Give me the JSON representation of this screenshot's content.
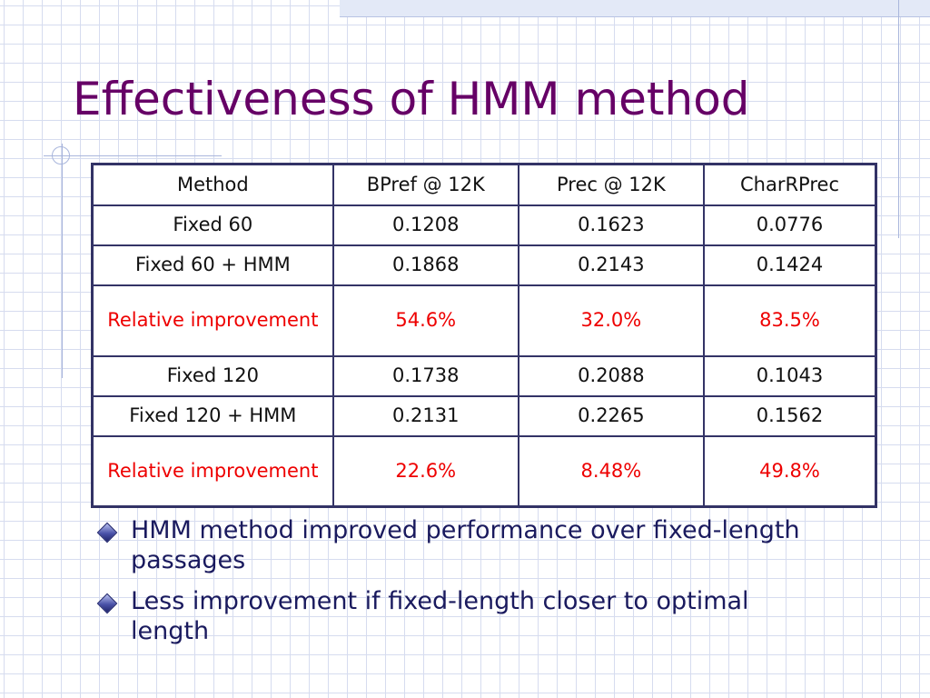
{
  "slide": {
    "title": "Effectiveness of HMM method"
  },
  "table": {
    "headers": [
      "Method",
      "BPref @ 12K",
      "Prec @ 12K",
      "CharRPrec"
    ],
    "rows": [
      [
        "Fixed 60",
        "0.1208",
        "0.1623",
        "0.0776"
      ],
      [
        "Fixed 60 + HMM",
        "0.1868",
        "0.2143",
        "0.1424"
      ],
      [
        "Relative improvement",
        "54.6%",
        "32.0%",
        "83.5%"
      ],
      [
        "Fixed 120",
        "0.1738",
        "0.2088",
        "0.1043"
      ],
      [
        "Fixed 120 + HMM",
        "0.2131",
        "0.2265",
        "0.1562"
      ],
      [
        "Relative improvement",
        "22.6%",
        "8.48%",
        "49.8%"
      ]
    ]
  },
  "bullets": [
    {
      "text": " HMM method improved performance over fixed-length passages",
      "icon": "diamond-bullet-icon"
    },
    {
      "text": " Less improvement if fixed-length closer to optimal length",
      "icon": "diamond-bullet-icon"
    }
  ],
  "colors": {
    "title": "#660066",
    "improvement_text": "#ee0000",
    "table_border": "#333366",
    "bullet_text": "#1a1a5e"
  }
}
